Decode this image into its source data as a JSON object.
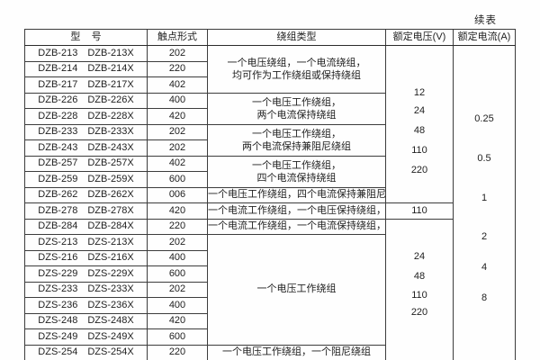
{
  "page": {
    "continued_label": "续表"
  },
  "table": {
    "headers": {
      "model": "型    号",
      "contact": "触点形式",
      "winding": "绕组类型",
      "voltage": "额定电压(V)",
      "current": "额定电流(A)"
    },
    "rows": [
      {
        "m1": "DZB-213",
        "m2": "DZB-213X",
        "contact": "202"
      },
      {
        "m1": "DZB-214",
        "m2": "DZB-214X",
        "contact": "220"
      },
      {
        "m1": "DZB-217",
        "m2": "DZB-217X",
        "contact": "402"
      },
      {
        "m1": "DZB-226",
        "m2": "DZB-226X",
        "contact": "400"
      },
      {
        "m1": "DZB-228",
        "m2": "DZB-228X",
        "contact": "420"
      },
      {
        "m1": "DZB-233",
        "m2": "DZB-233X",
        "contact": "202"
      },
      {
        "m1": "DZB-243",
        "m2": "DZB-243X",
        "contact": "202"
      },
      {
        "m1": "DZB-257",
        "m2": "DZB-257X",
        "contact": "402"
      },
      {
        "m1": "DZB-259",
        "m2": "DZB-259X",
        "contact": "600"
      },
      {
        "m1": "DZB-262",
        "m2": "DZB-262X",
        "contact": "006"
      },
      {
        "m1": "DZB-278",
        "m2": "DZB-278X",
        "contact": "420"
      },
      {
        "m1": "DZB-284",
        "m2": "DZB-284X",
        "contact": "220"
      },
      {
        "m1": "DZS-213",
        "m2": "DZS-213X",
        "contact": "202"
      },
      {
        "m1": "DZS-216",
        "m2": "DZS-216X",
        "contact": "400"
      },
      {
        "m1": "DZS-229",
        "m2": "DZS-229X",
        "contact": "600"
      },
      {
        "m1": "DZS-233",
        "m2": "DZS-233X",
        "contact": "202"
      },
      {
        "m1": "DZS-236",
        "m2": "DZS-236X",
        "contact": "400"
      },
      {
        "m1": "DZS-248",
        "m2": "DZS-248X",
        "contact": "420"
      },
      {
        "m1": "DZS-249",
        "m2": "DZS-249X",
        "contact": "600"
      },
      {
        "m1": "DZS-254",
        "m2": "DZS-254X",
        "contact": "220"
      }
    ],
    "winding": {
      "g1_line1": "一个电压绕组，一个电流绕组，",
      "g1_line2": "均可作为工作绕组或保持绕组",
      "g2_line1": "一个电压工作绕组，",
      "g2_line2": "两个电流保持绕组",
      "g3_line1": "一个电压工作绕组，",
      "g3_line2": "两个电流保持兼阻尼绕组",
      "g4_line1": "一个电压工作绕组，",
      "g4_line2": "四个电流保持绕组",
      "r10": "一个电压工作绕组，四个电流保持兼阻尼绕组",
      "r11": "一个电流工作绕组，一个电压保持绕组，一个阻尼绕组",
      "r12": "一个电流工作绕组，一个电流保持绕组，一个电压保持绕组",
      "dzs_group": "一个电压工作绕组",
      "r20": "一个电压工作绕组，一个阻尼绕组"
    },
    "voltage": {
      "group1": [
        "12",
        "24",
        "48",
        "110",
        "220"
      ],
      "r11": "110",
      "group2": [
        "24",
        "48",
        "110",
        "220"
      ]
    },
    "current": [
      "0.25",
      "0.5",
      "1",
      "2",
      "4",
      "8"
    ]
  }
}
